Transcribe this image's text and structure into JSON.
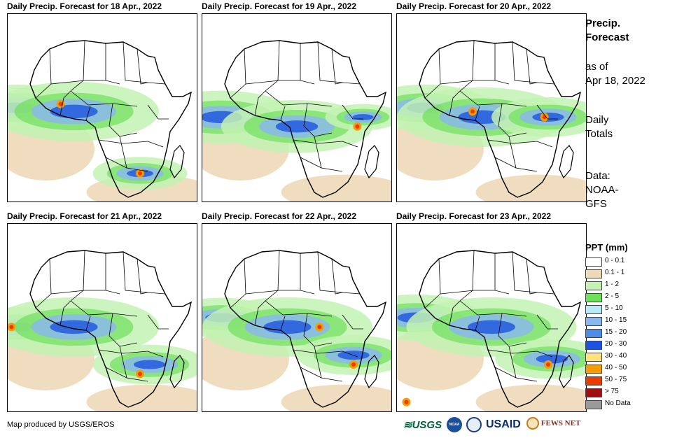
{
  "panels": [
    {
      "title": "Daily Precip. Forecast for 18 Apr., 2022",
      "wet_zones": [
        [
          0.05,
          0.5,
          0.35
        ],
        [
          0.35,
          0.52,
          0.45
        ],
        [
          0.7,
          0.85,
          0.25
        ]
      ],
      "heavy": [
        [
          0.28,
          0.48
        ],
        [
          0.7,
          0.85
        ]
      ]
    },
    {
      "title": "Daily Precip. Forecast for 19 Apr., 2022",
      "wet_zones": [
        [
          0.1,
          0.55,
          0.4
        ],
        [
          0.5,
          0.6,
          0.4
        ],
        [
          0.85,
          0.55,
          0.2
        ]
      ],
      "heavy": [
        [
          0.82,
          0.6
        ]
      ]
    },
    {
      "title": "Daily Precip. Forecast for 20 Apr., 2022",
      "wet_zones": [
        [
          0.15,
          0.5,
          0.35
        ],
        [
          0.45,
          0.55,
          0.45
        ],
        [
          0.8,
          0.55,
          0.3
        ]
      ],
      "heavy": [
        [
          0.4,
          0.52
        ],
        [
          0.78,
          0.55
        ]
      ]
    },
    {
      "title": "Daily Precip. Forecast for 21 Apr., 2022",
      "wet_zones": [
        [
          0.05,
          0.55,
          0.3
        ],
        [
          0.35,
          0.55,
          0.45
        ],
        [
          0.75,
          0.75,
          0.3
        ]
      ],
      "heavy": [
        [
          0.02,
          0.55
        ],
        [
          0.7,
          0.8
        ]
      ]
    },
    {
      "title": "Daily Precip. Forecast for 22 Apr., 2022",
      "wet_zones": [
        [
          0.1,
          0.5,
          0.3
        ],
        [
          0.45,
          0.55,
          0.45
        ],
        [
          0.8,
          0.7,
          0.3
        ]
      ],
      "heavy": [
        [
          0.62,
          0.55
        ],
        [
          0.8,
          0.75
        ]
      ]
    },
    {
      "title": "Daily Precip. Forecast for 23 Apr., 2022",
      "wet_zones": [
        [
          0.1,
          0.5,
          0.35
        ],
        [
          0.5,
          0.55,
          0.45
        ],
        [
          0.82,
          0.72,
          0.3
        ]
      ],
      "heavy": [
        [
          0.8,
          0.75
        ],
        [
          0.05,
          0.95
        ]
      ]
    }
  ],
  "side_info": {
    "heading_line1": "Precip.",
    "heading_line2": "Forecast",
    "as_of_line1": "as of",
    "as_of_line2": "Apr 18, 2022",
    "totals_line1": "Daily",
    "totals_line2": "Totals",
    "data_line1": "Data:",
    "data_line2": "NOAA-",
    "data_line3": "GFS"
  },
  "legend": {
    "title": "PPT (mm)",
    "items": [
      {
        "label": "0 - 0.1",
        "color": "#ffffff"
      },
      {
        "label": "0.1 - 1",
        "color": "#eed9b8"
      },
      {
        "label": "1 - 2",
        "color": "#c3f2b3"
      },
      {
        "label": "2 - 5",
        "color": "#6fe05c"
      },
      {
        "label": "5 - 10",
        "color": "#b6ecf7"
      },
      {
        "label": "10 - 15",
        "color": "#8bb8ec"
      },
      {
        "label": "15 - 20",
        "color": "#4f8ee8"
      },
      {
        "label": "20 - 30",
        "color": "#1d52e0"
      },
      {
        "label": "30 - 40",
        "color": "#ffe27a"
      },
      {
        "label": "40 - 50",
        "color": "#f59c00"
      },
      {
        "label": "50 - 75",
        "color": "#ea3b00"
      },
      {
        "label": "> 75",
        "color": "#a01010"
      },
      {
        "label": "No Data",
        "color": "#9a9a9a"
      }
    ]
  },
  "footer": {
    "credit": "Map produced by USGS/EROS"
  },
  "logos": {
    "usgs": "USGS",
    "noaa": "NOAA",
    "usaid": "USAID",
    "fewsnet": "FEWS NET"
  }
}
